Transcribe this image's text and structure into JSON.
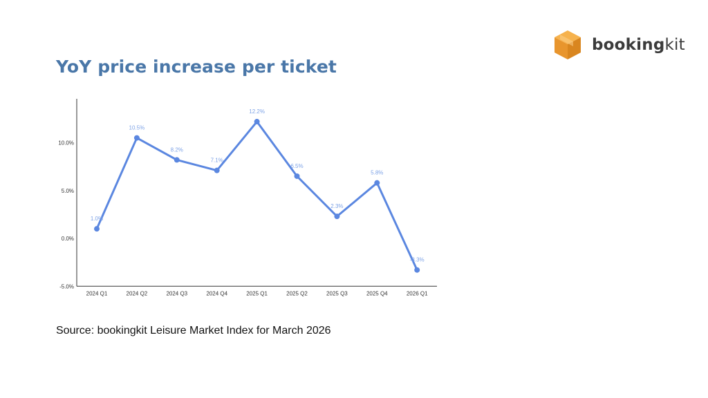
{
  "header": {
    "title": "YoY price increase per ticket"
  },
  "logo": {
    "text_bold": "booking",
    "text_light": "kit",
    "icon": "box-icon",
    "color": "#f0a23c"
  },
  "chart_data": {
    "type": "line",
    "title": "",
    "xlabel": "",
    "ylabel": "",
    "categories": [
      "2024 Q1",
      "2024 Q2",
      "2024 Q3",
      "2024 Q4",
      "2025 Q1",
      "2025 Q2",
      "2025 Q3",
      "2025 Q4",
      "2026 Q1"
    ],
    "series": [
      {
        "values": [
          1.0,
          10.5,
          8.2,
          7.1,
          12.2,
          6.5,
          2.3,
          5.8,
          -3.3
        ],
        "labels": [
          "1.0%",
          "10.5%",
          "8.2%",
          "7.1%",
          "12.2%",
          "6.5%",
          "2.3%",
          "5.8%",
          "-3.3%"
        ],
        "color": "#5b87e0"
      }
    ],
    "yticks": [
      -5,
      0,
      5,
      10
    ],
    "ytick_labels": [
      "-5.0%",
      "0.0%",
      "5.0%",
      "10.0%"
    ],
    "ylim": [
      -5,
      14
    ],
    "grid": false,
    "legend": "none"
  },
  "footer": {
    "source": "Source: bookingkit Leisure Market Index for March 2026"
  }
}
